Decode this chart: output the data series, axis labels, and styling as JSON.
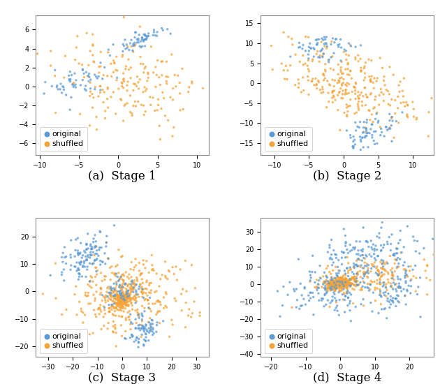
{
  "seed": 42,
  "color_original": "#5B9BD5",
  "color_shuffled": "#F4A43A",
  "marker_size": 6,
  "alpha": 0.75,
  "captions": [
    "(a)  Stage 1",
    "(b)  Stage 2",
    "(c)  Stage 3",
    "(d)  Stage 4"
  ],
  "caption_fontsize": 12,
  "legend_fontsize": 8,
  "stages": [
    {
      "xlim": [
        -10.5,
        11.5
      ],
      "ylim": [
        -7.2,
        7.5
      ]
    },
    {
      "xlim": [
        -12,
        13
      ],
      "ylim": [
        -18,
        17
      ]
    },
    {
      "xlim": [
        -35,
        35
      ],
      "ylim": [
        -24,
        27
      ]
    },
    {
      "xlim": [
        -23,
        27
      ],
      "ylim": [
        -42,
        38
      ]
    }
  ]
}
